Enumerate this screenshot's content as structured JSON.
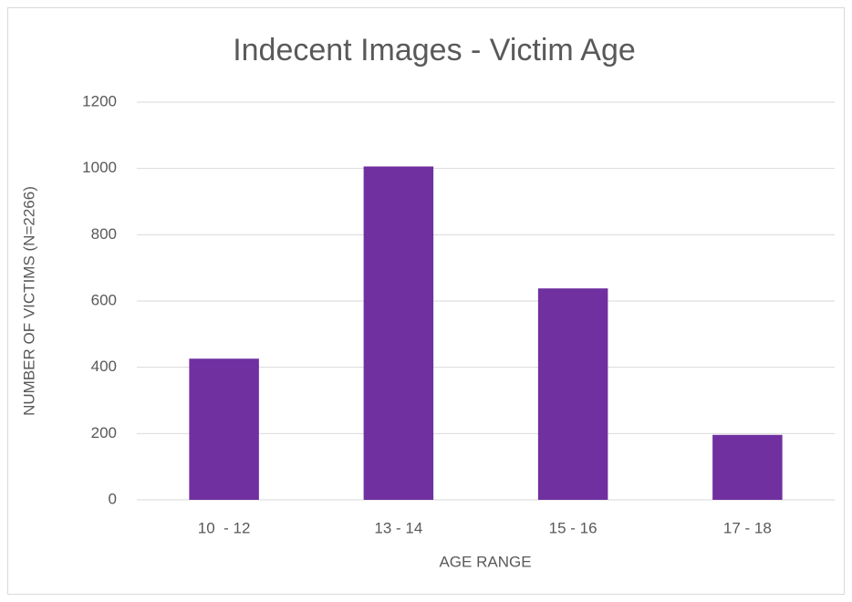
{
  "chart_data": {
    "type": "bar",
    "title": "Indecent Images - Victim Age",
    "x_label": "AGE RANGE",
    "y_label": "NUMBER OF VICTIMS (N=2266)",
    "categories": [
      "10  - 12",
      "13 - 14",
      "15 - 16",
      "17 - 18"
    ],
    "values": [
      426,
      1006,
      638,
      196
    ],
    "color": "#7030a0",
    "ylim": [
      0,
      1200
    ],
    "yticks": [
      0,
      200,
      400,
      600,
      800,
      1000,
      1200
    ],
    "grid": true
  }
}
